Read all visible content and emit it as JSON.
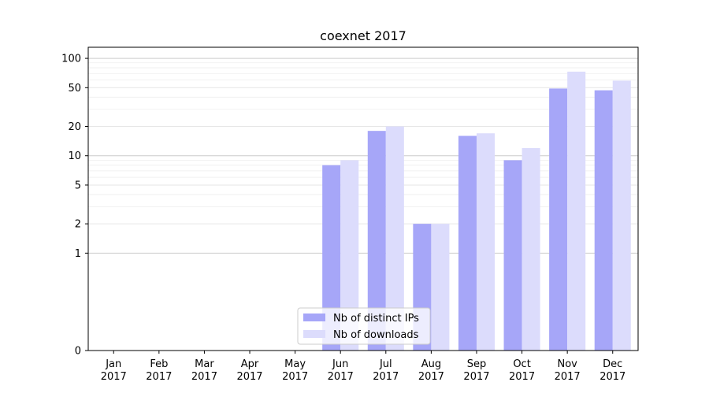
{
  "chart_data": {
    "type": "bar",
    "title": "coexnet 2017",
    "xlabel": "",
    "ylabel": "",
    "y_scale": "symlog",
    "ylim": [
      0,
      130
    ],
    "y_ticks": [
      0,
      1,
      2,
      5,
      10,
      20,
      50,
      100
    ],
    "categories": [
      "Jan\n2017",
      "Feb\n2017",
      "Mar\n2017",
      "Apr\n2017",
      "May\n2017",
      "Jun\n2017",
      "Jul\n2017",
      "Aug\n2017",
      "Sep\n2017",
      "Oct\n2017",
      "Nov\n2017",
      "Dec\n2017"
    ],
    "series": [
      {
        "name": "Nb of distinct IPs",
        "color": "#a6a6f8",
        "values": [
          0,
          0,
          0,
          0,
          0,
          8,
          18,
          2,
          16,
          9,
          49,
          47
        ]
      },
      {
        "name": "Nb of downloads",
        "color": "#dcdcfc",
        "values": [
          0,
          0,
          0,
          0,
          0,
          9,
          20,
          2,
          17,
          12,
          73,
          59
        ]
      }
    ],
    "grid": true,
    "legend_position": "bottom-center"
  }
}
